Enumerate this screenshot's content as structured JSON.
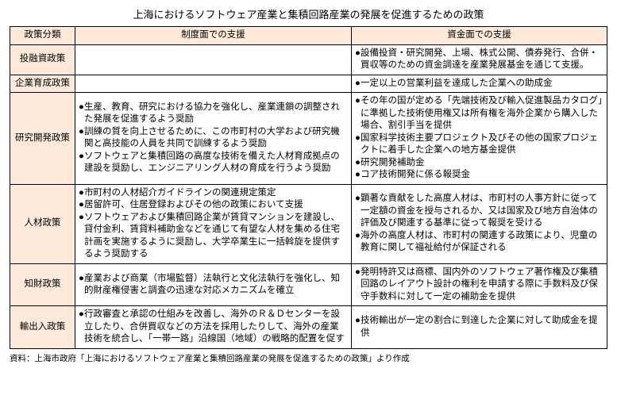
{
  "title": "上海におけるソフトウェア産業と集積回路産業の発展を促進するための政策",
  "headers": {
    "col1": "政策分類",
    "col2": "制度面での支援",
    "col3": "資金面での支援"
  },
  "rows": [
    {
      "cat": "投融資政策",
      "c2": [],
      "c3": [
        "設備投資・研究開発、上場、株式公開、債券発行、合併・買収等のための資金調達を産業発展基金を通じて支援。"
      ]
    },
    {
      "cat": "企業育成政策",
      "c2": [],
      "c3": [
        "一定以上の営業利益を達成した企業への助成金"
      ]
    },
    {
      "cat": "研究開発政策",
      "c2": [
        "生産、教育、研究における協力を強化し、産業連鎖の調整された発展を促進するよう奨励",
        "訓練の質を向上させるために、この市町村の大学および研究機関と高技能の人員を共同で訓練するよう奨励",
        "ソフトウェアと集積回路の高度な技術を備えた人材育成拠点の建設を奨励し、エンジニアリング人材の育成を行うよう奨励"
      ],
      "c3": [
        "その年の国が定める「先端技術及び輸入促進製品カタログ」に準拠した技術使用権又は所有権を海外企業から購入した場合、割引手当を提供",
        "国家科学技術主要プロジェクト及びその他の国家プロジェクトに着手した企業への地方基金提供",
        "研究開発補助金",
        "コア技術開発に係る報奨金"
      ]
    },
    {
      "cat": "人材政策",
      "c2": [
        "市町村の人材紹介ガイドラインの関連規定策定",
        "居留許可、住居登録およびその他の政策において支援",
        "ソフトウェアおよび集積回路企業が賃貸マンションを建設し、貸付金利、賃貸料補助金などを通じて有望な人材を集める住宅計画を実施するように奨励し、大学卒業生に一括斡旋を提供するよう奨励する"
      ],
      "c3": [
        "顕著な貢献をした高度人材は、市町村の人事方針に従って一定額の資金を授与されるか、又は国家及び地方自治体の評価及び関連する基準に従って報奨を受ける",
        "海外の高度人材は、市町村の関連する政策により、児童の教育に関して福祉給付が保証される"
      ]
    },
    {
      "cat": "知財政策",
      "c2": [
        "産業および商業（市場監督）法執行と文化法執行を強化し、知的財産権侵害と調査の迅速な対応メカニズムを確立"
      ],
      "c3": [
        "発明特許又は商標、国内外のソフトウェア著作権及び集積回路のレイアウト設計の権利を申請する際に手数料及び保守手数料に対して一定の補助金を提供"
      ]
    },
    {
      "cat": "輸出入政策",
      "c2": [
        "行政審査と承認の仕組みを改善し、海外のＲ＆Ｄセンターを設立したり、合併買収などの方法を採用したりして、海外の産業技術を統合し、「一帯一路」沿線国（地域）の戦略的配置を促す"
      ],
      "c3": [
        "技術輸出が一定の割合に到達した企業に対して助成金を提供"
      ]
    }
  ],
  "source": "資料：上海市政府「上海におけるソフトウェア産業と集積回路産業の発展を促進するための政策」より作成",
  "bulletMark": "●",
  "colors": {
    "header_bg": "#fdeada",
    "border": "#000000",
    "text": "#000000",
    "background": "#ffffff"
  }
}
